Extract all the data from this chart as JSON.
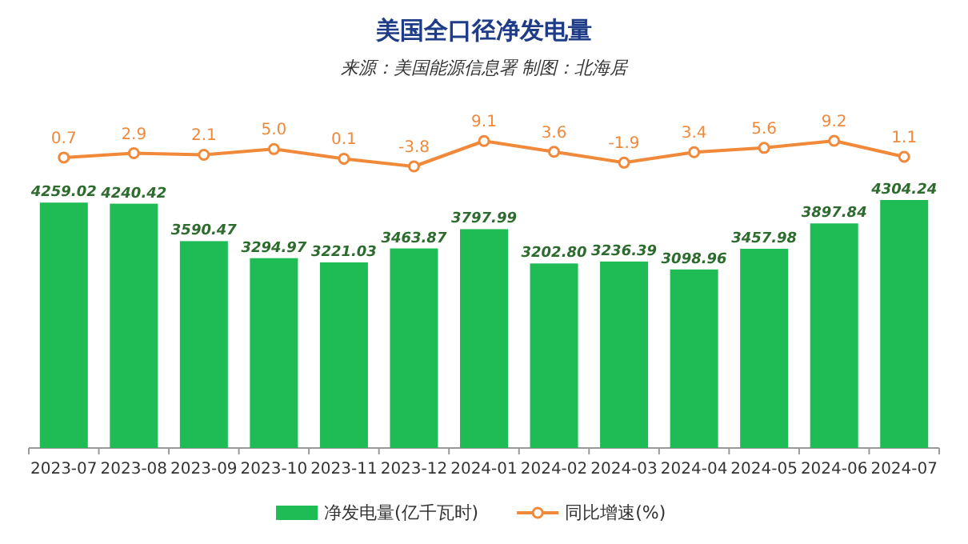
{
  "chart_data": [
    {
      "type": "bar",
      "categories": [
        "2023-07",
        "2023-08",
        "2023-09",
        "2023-10",
        "2023-11",
        "2023-12",
        "2024-01",
        "2024-02",
        "2024-03",
        "2024-04",
        "2024-05",
        "2024-06",
        "2024-07"
      ],
      "series": [
        {
          "name": "净发电量(亿千瓦时)",
          "color": "#1fbc55",
          "values": [
            4259.02,
            4240.42,
            3590.47,
            3294.97,
            3221.03,
            3463.87,
            3797.99,
            3202.8,
            3236.39,
            3098.96,
            3457.98,
            3897.84,
            4304.24
          ],
          "value_labels": [
            "4259.02",
            "4240.42",
            "3590.47",
            "3294.97",
            "3221.03",
            "3463.87",
            "3797.99",
            "3202.80",
            "3236.39",
            "3098.96",
            "3457.98",
            "3897.84",
            "4304.24"
          ]
        }
      ],
      "tick_labels": "x",
      "legend": "bottom"
    },
    {
      "type": "line",
      "title": "美国全口径净发电量",
      "subtitle": "来源：美国能源信息署 制图：北海居",
      "categories": [
        null,
        null,
        null,
        null,
        null,
        null,
        null,
        null,
        null,
        null,
        null,
        null,
        null
      ],
      "series": [
        {
          "name": "同比增速(%)",
          "color": "#f0893a",
          "values": [
            0.7,
            2.9,
            2.1,
            5.0,
            0.1,
            -3.8,
            9.1,
            3.6,
            -1.9,
            3.4,
            5.6,
            9.2,
            1.1
          ],
          "value_labels": [
            "0.7",
            "2.9",
            "2.1",
            "5.0",
            "0.1",
            "-3.8",
            "9.1",
            "3.6",
            "-1.9",
            "3.4",
            "5.6",
            "9.2",
            "1.1"
          ]
        }
      ],
      "legend": "bottom",
      "marker": "circle",
      "line_style": "solid"
    }
  ]
}
